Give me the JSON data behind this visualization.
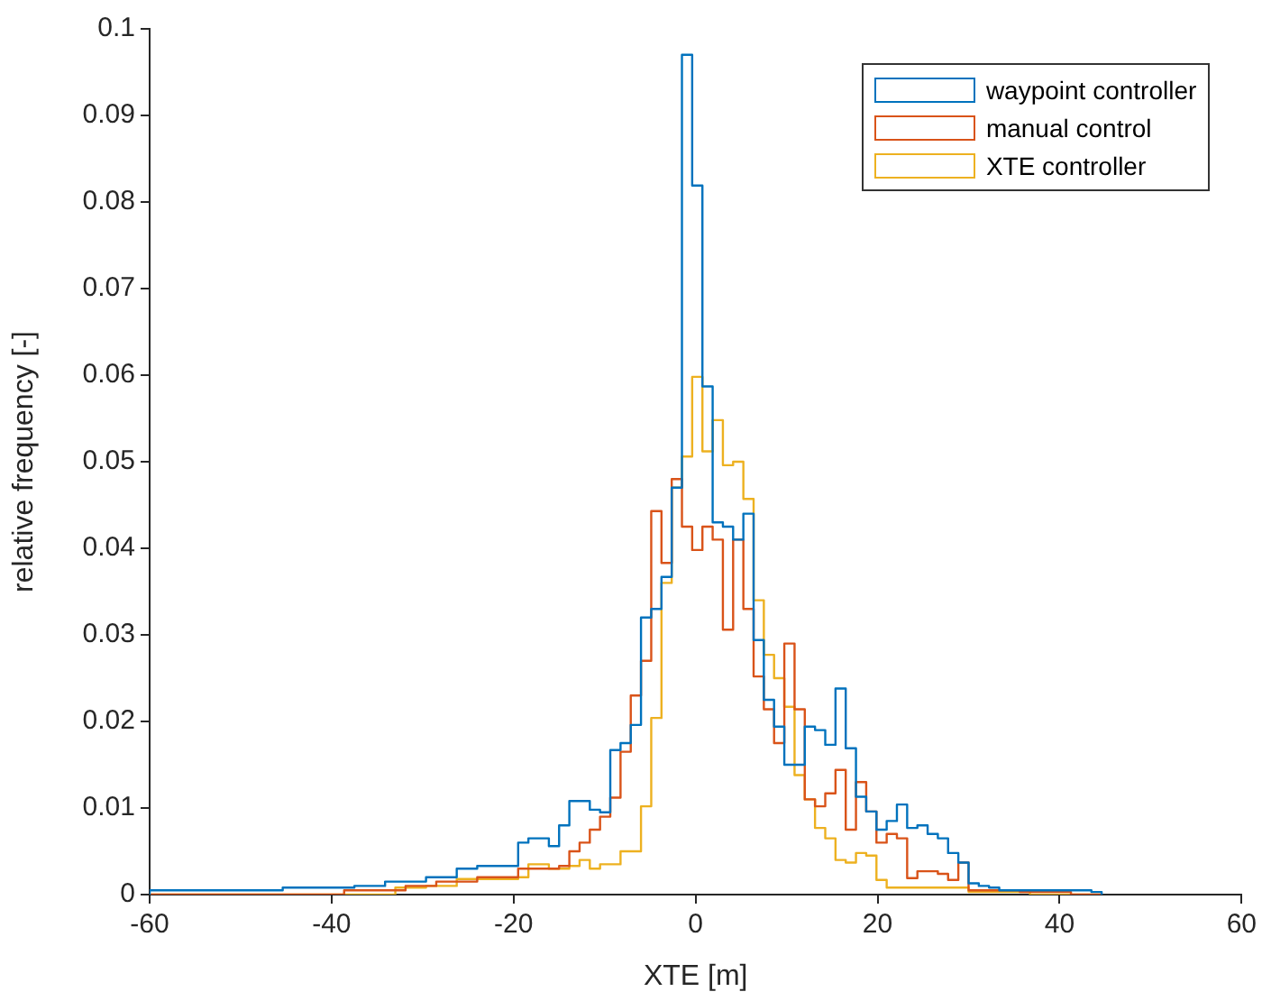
{
  "chart_data": {
    "type": "histogram",
    "xlabel": "XTE [m]",
    "ylabel": "relative frequency [-]",
    "bins": [
      -60,
      -58.875,
      -57.75,
      -56.625,
      -55.5,
      -54.375,
      -53.25,
      -52.125,
      -51,
      -49.875,
      -48.75,
      -47.625,
      -46.5,
      -45.375,
      -44.25,
      -43.125,
      -42,
      -40.875,
      -39.75,
      -38.625,
      -37.5,
      -36.375,
      -35.25,
      -34.125,
      -33,
      -31.875,
      -30.75,
      -29.625,
      -28.5,
      -27.375,
      -26.25,
      -25.125,
      -24,
      -22.875,
      -21.75,
      -20.625,
      -19.5,
      -18.375,
      -17.25,
      -16.125,
      -15,
      -13.875,
      -12.75,
      -11.625,
      -10.5,
      -9.375,
      -8.25,
      -7.125,
      -6,
      -4.875,
      -3.75,
      -2.625,
      -1.5,
      -0.375,
      0.75,
      1.875,
      3,
      4.125,
      5.25,
      6.375,
      7.5,
      8.625,
      9.75,
      10.875,
      12,
      13.125,
      14.25,
      15.375,
      16.5,
      17.625,
      18.75,
      19.875,
      21,
      22.125,
      23.25,
      24.375,
      25.5,
      26.625,
      27.75,
      28.875,
      30,
      31.125,
      32.25,
      33.375,
      34.5,
      35.625,
      36.75,
      37.875,
      39,
      40.125,
      41.25,
      42.375,
      43.5,
      44.625
    ],
    "series": [
      {
        "name": "waypoint controller",
        "color": "#0072bd",
        "values": [
          0.0005,
          0.0005,
          0.0005,
          0.0005,
          0.0005,
          0.0005,
          0.0005,
          0.0005,
          0.0005,
          0.0005,
          0.0005,
          0.0005,
          0.0005,
          0.0008,
          0.0008,
          0.0008,
          0.0008,
          0.0008,
          0.0008,
          0.0008,
          0.001,
          0.001,
          0.001,
          0.0015,
          0.0015,
          0.0015,
          0.0015,
          0.002,
          0.002,
          0.002,
          0.003,
          0.003,
          0.0033,
          0.0033,
          0.0033,
          0.0033,
          0.006,
          0.0065,
          0.0065,
          0.0056,
          0.008,
          0.0108,
          0.0108,
          0.0098,
          0.0095,
          0.0167,
          0.0175,
          0.0196,
          0.032,
          0.033,
          0.0367,
          0.047,
          0.097,
          0.0819,
          0.0587,
          0.043,
          0.0425,
          0.041,
          0.044,
          0.0294,
          0.0225,
          0.0194,
          0.015,
          0.015,
          0.0194,
          0.019,
          0.0173,
          0.0238,
          0.0169,
          0.0113,
          0.0096,
          0.0075,
          0.0085,
          0.0104,
          0.0077,
          0.008,
          0.007,
          0.0065,
          0.0048,
          0.0037,
          0.0013,
          0.001,
          0.0008,
          0.0005,
          0.0005,
          0.0005,
          0.0005,
          0.0005,
          0.0005,
          0.0005,
          0.0005,
          0.0005,
          0.0003
        ]
      },
      {
        "name": "manual control",
        "color": "#d95319",
        "values": [
          0,
          0,
          0,
          0,
          0,
          0,
          0,
          0,
          0,
          0,
          0,
          0,
          0,
          0,
          0,
          0,
          0,
          0,
          0,
          0.0005,
          0.0005,
          0.0005,
          0.0005,
          0.0005,
          0.0005,
          0.001,
          0.001,
          0.001,
          0.0015,
          0.0015,
          0.0015,
          0.0015,
          0.002,
          0.002,
          0.002,
          0.002,
          0.003,
          0.003,
          0.003,
          0.003,
          0.0033,
          0.005,
          0.006,
          0.0075,
          0.009,
          0.0112,
          0.0165,
          0.023,
          0.027,
          0.0443,
          0.0383,
          0.048,
          0.0425,
          0.0398,
          0.0425,
          0.041,
          0.0306,
          0.041,
          0.033,
          0.0252,
          0.0214,
          0.0175,
          0.029,
          0.0214,
          0.011,
          0.0102,
          0.0117,
          0.0144,
          0.0075,
          0.013,
          0.0096,
          0.006,
          0.007,
          0.0065,
          0.0019,
          0.0027,
          0.0027,
          0.0024,
          0.0017,
          0.0037,
          0.0005,
          0.0005,
          0.0005,
          0.0005,
          0.0005,
          0.0003,
          0.0003,
          0.0003,
          0.0003,
          0.0003,
          0,
          0,
          0
        ]
      },
      {
        "name": "XTE controller",
        "color": "#edb120",
        "values": [
          0,
          0,
          0,
          0,
          0,
          0,
          0,
          0,
          0,
          0,
          0,
          0,
          0,
          0,
          0,
          0,
          0,
          0,
          0,
          0,
          0,
          0,
          0,
          0,
          0.0008,
          0.0008,
          0.0008,
          0.001,
          0.001,
          0.001,
          0.0018,
          0.0018,
          0.0018,
          0.0018,
          0.0018,
          0.0018,
          0.002,
          0.0035,
          0.0035,
          0.003,
          0.003,
          0.0033,
          0.004,
          0.003,
          0.0035,
          0.0035,
          0.005,
          0.005,
          0.0102,
          0.0204,
          0.036,
          0.047,
          0.0506,
          0.0598,
          0.0512,
          0.0548,
          0.0496,
          0.05,
          0.0457,
          0.034,
          0.0277,
          0.025,
          0.0217,
          0.0138,
          0.011,
          0.0077,
          0.0065,
          0.004,
          0.0037,
          0.0048,
          0.0045,
          0.0017,
          0.0008,
          0.0008,
          0.0008,
          0.0008,
          0.0008,
          0.0008,
          0.0008,
          0.0008,
          0.0003,
          0.0003,
          0.0003,
          0.0003,
          0.0003,
          0.0003,
          0,
          0,
          0,
          0,
          0,
          0,
          0
        ]
      }
    ],
    "xlim": [
      -60,
      60
    ],
    "xticks": [
      -60,
      -40,
      -20,
      0,
      20,
      40,
      60
    ],
    "ylim": [
      0,
      0.1
    ],
    "yticks": [
      0,
      0.01,
      0.02,
      0.03,
      0.04,
      0.05,
      0.06,
      0.07,
      0.08,
      0.09,
      0.1
    ],
    "grid": false,
    "legend": "top right",
    "line_style": "solid"
  }
}
